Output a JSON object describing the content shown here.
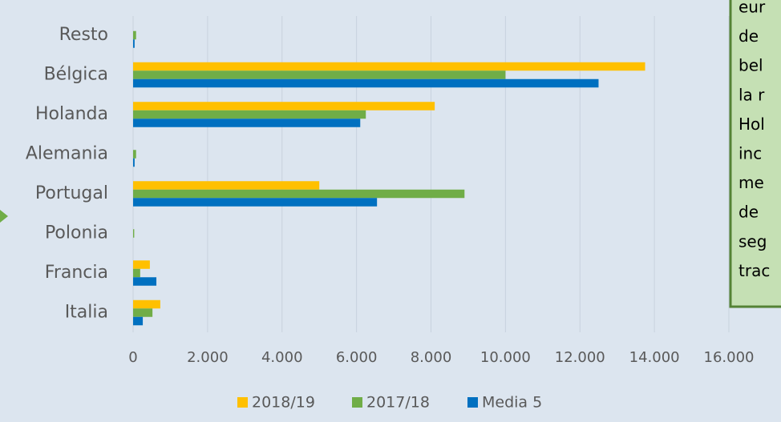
{
  "chart_data": {
    "type": "barh",
    "categories": [
      "Resto",
      "Bélgica",
      "Holanda",
      "Alemania",
      "Portugal",
      "Polonia",
      "Francia",
      "Italia"
    ],
    "series": [
      {
        "name": "2018/19",
        "color": "#ffc000",
        "values": [
          0,
          13750,
          8100,
          0,
          5000,
          0,
          450,
          730
        ]
      },
      {
        "name": "2017/18",
        "color": "#70ad47",
        "values": [
          80,
          10000,
          6250,
          80,
          8900,
          30,
          190,
          520
        ]
      },
      {
        "name": "Media 5",
        "color": "#0070c0",
        "values": [
          40,
          12500,
          6100,
          40,
          6550,
          0,
          625,
          260
        ]
      }
    ],
    "xlim": [
      0,
      16000
    ],
    "xticks": [
      0,
      {
        "value": 2000,
        "label": "2.000"
      },
      {
        "value": 4000,
        "label": "4.000"
      },
      {
        "value": 6000,
        "label": "6.000"
      },
      {
        "value": 8000,
        "label": "8.000"
      },
      {
        "value": 10000,
        "label": "10.000"
      },
      {
        "value": 12000,
        "label": "12.000"
      },
      {
        "value": 14000,
        "label": "14.000"
      },
      {
        "value": 16000,
        "label": "16.000"
      }
    ],
    "grid": true,
    "legend": "bottom",
    "annotation": [
      "eur",
      "de",
      "bel",
      "la r",
      "Hol",
      "inc",
      "me",
      "de",
      "seg",
      "trac"
    ]
  }
}
